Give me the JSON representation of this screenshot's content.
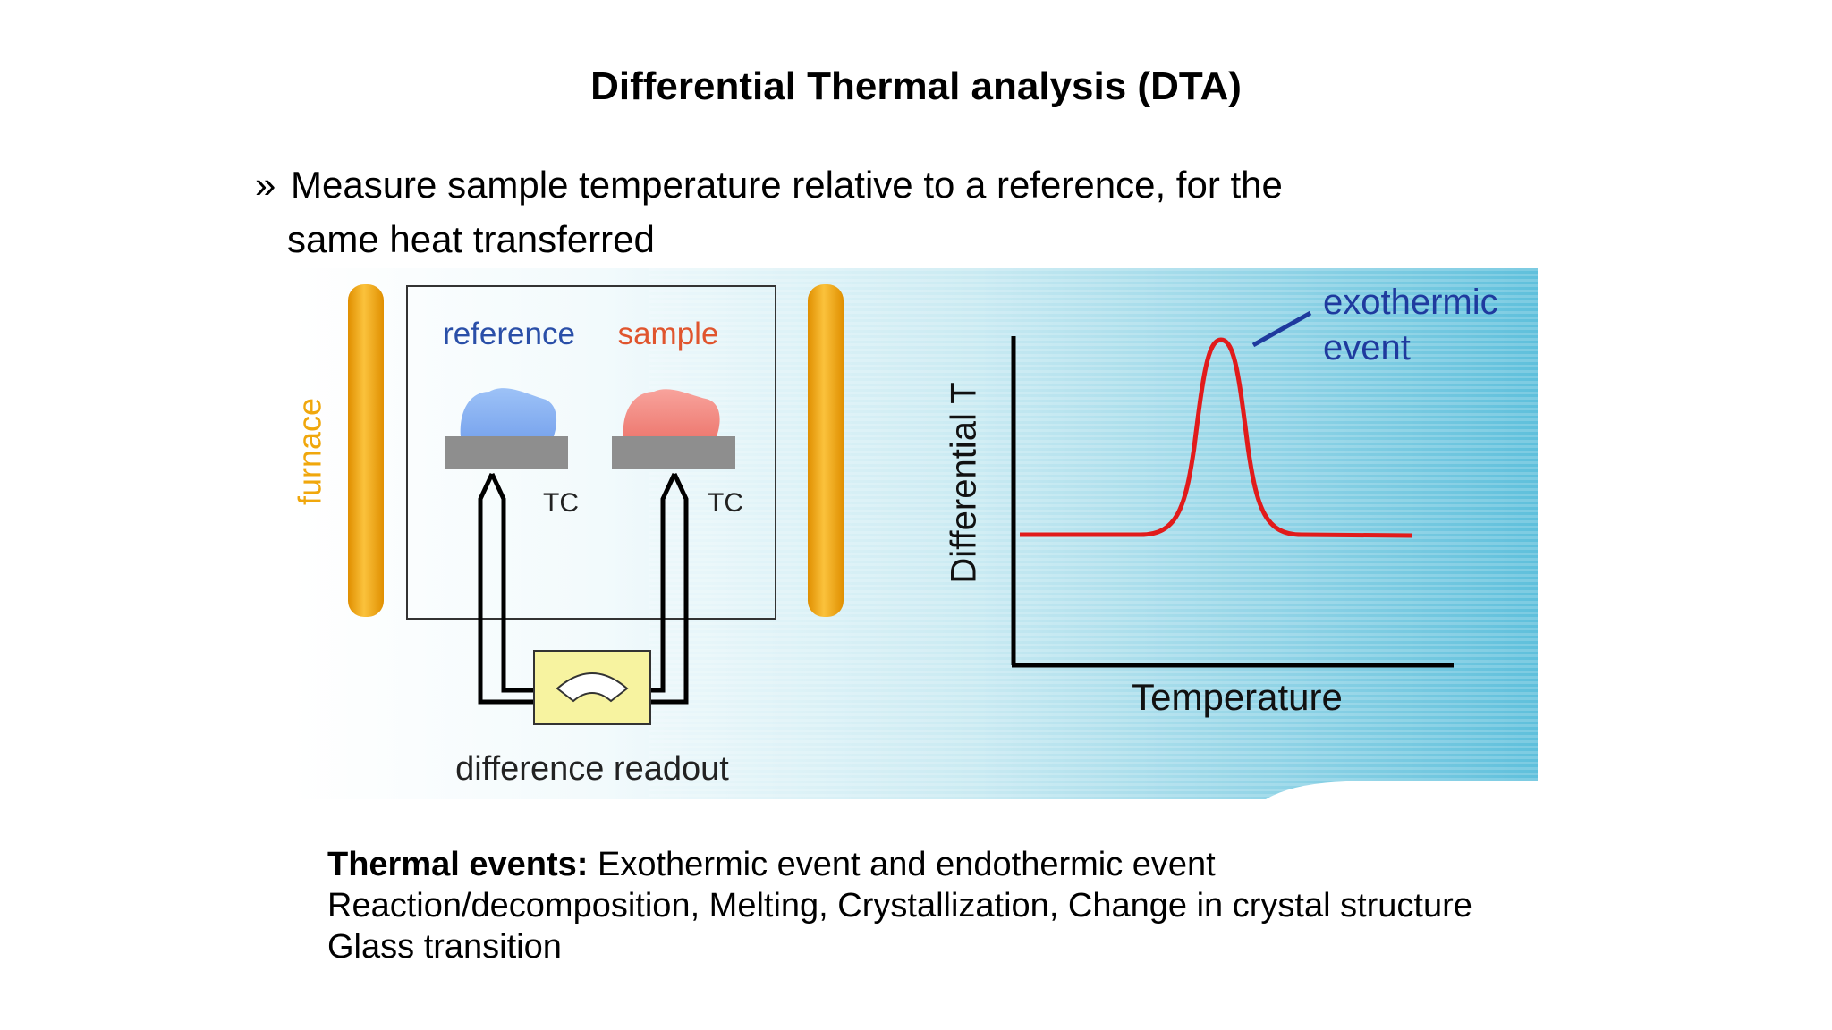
{
  "slide": {
    "title": "Differential Thermal analysis (DTA)",
    "bullet_mark": "»",
    "bullet_line1": "Measure sample temperature relative to a reference, for the",
    "bullet_line2": "same heat transferred"
  },
  "diagram": {
    "furnace_label": "furnace",
    "reference_label": "reference",
    "sample_label": "sample",
    "tc_left_label": "TC",
    "tc_right_label": "TC",
    "readout_label": "difference readout",
    "colors": {
      "furnace": "#f0a70c",
      "reference_blob": "#8fb6f2",
      "sample_blob": "#f08a82",
      "reference_text": "#2a4fa8",
      "sample_text": "#e0552e",
      "readout_box": "#f7f3a0",
      "curve": "#e11b1b",
      "background_accent": "#5fc0dc"
    }
  },
  "graph": {
    "y_axis_label": "Differential T",
    "x_axis_label": "Temperature",
    "annotation_line1": "exothermic",
    "annotation_line2": "event"
  },
  "events": {
    "heading": "Thermal events:",
    "line1_rest": " Exothermic event and endothermic event",
    "line2": "Reaction/decomposition, Melting, Crystallization, Change in crystal structure",
    "line3": "Glass transition"
  }
}
